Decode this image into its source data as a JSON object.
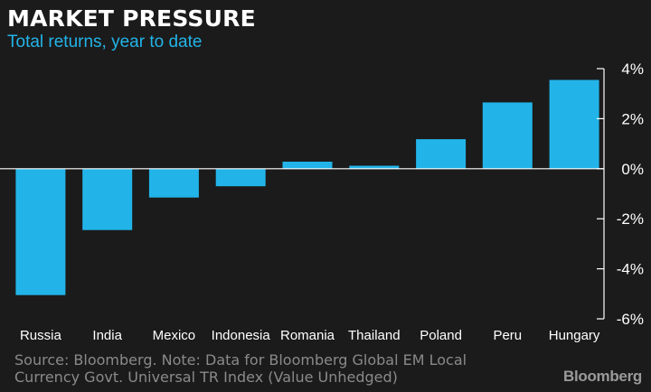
{
  "header": {
    "title": "MARKET PRESSURE",
    "subtitle": "Total returns, year to date"
  },
  "footer": {
    "source_line1": "Source: Bloomberg. Note: Data for Bloomberg Global EM Local",
    "source_line2": "Currency Govt. Universal TR Index (Value Unhedged)",
    "brand": "Bloomberg"
  },
  "colors": {
    "background": "#1b1b1b",
    "bar": "#22b4e8",
    "subtitle": "#22b4e8",
    "text": "#ffffff",
    "footer": "#8a8a8a"
  },
  "chart_data": {
    "type": "bar",
    "title": "MARKET PRESSURE",
    "subtitle": "Total returns, year to date",
    "categories": [
      "Russia",
      "India",
      "Mexico",
      "Indonesia",
      "Romania",
      "Thailand",
      "Poland",
      "Peru",
      "Hungary"
    ],
    "values": [
      -5.05,
      -2.45,
      -1.15,
      -0.7,
      0.28,
      0.12,
      1.18,
      2.65,
      3.55
    ],
    "unit": "%",
    "ylim": [
      -6,
      4
    ],
    "yticks": [
      4,
      2,
      0,
      -2,
      -4,
      -6
    ],
    "ytick_labels": [
      "4%",
      "2%",
      "0%",
      "-2%",
      "-4%",
      "-6%"
    ],
    "y_axis_position": "right",
    "grid": false,
    "legend": "none"
  }
}
